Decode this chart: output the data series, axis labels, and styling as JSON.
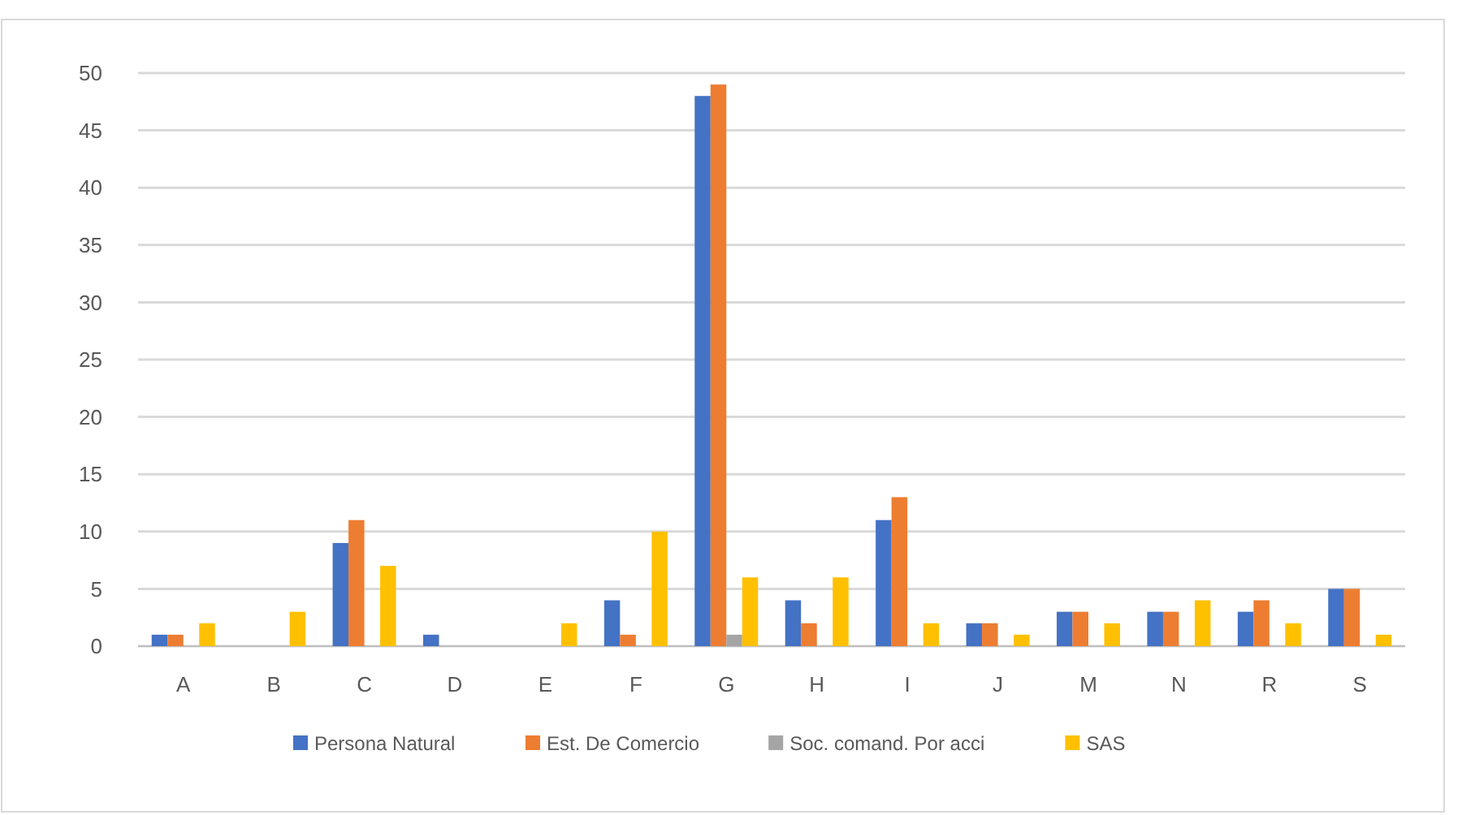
{
  "chart_data": {
    "type": "bar",
    "categories": [
      "A",
      "B",
      "C",
      "D",
      "E",
      "F",
      "G",
      "H",
      "I",
      "J",
      "M",
      "N",
      "R",
      "S"
    ],
    "series": [
      {
        "name": "Persona Natural",
        "color": "#4472c4",
        "values": [
          1,
          0,
          9,
          1,
          0,
          4,
          48,
          4,
          11,
          2,
          3,
          3,
          3,
          5
        ]
      },
      {
        "name": "Est. De Comercio",
        "color": "#ed7d31",
        "values": [
          1,
          0,
          11,
          0,
          0,
          1,
          49,
          2,
          13,
          2,
          3,
          3,
          4,
          5
        ]
      },
      {
        "name": "Soc. comand. Por acci",
        "color": "#a5a5a5",
        "values": [
          0,
          0,
          0,
          0,
          0,
          0,
          1,
          0,
          0,
          0,
          0,
          0,
          0,
          0
        ]
      },
      {
        "name": "SAS",
        "color": "#ffc000",
        "values": [
          2,
          3,
          7,
          0,
          2,
          10,
          6,
          6,
          2,
          1,
          2,
          4,
          2,
          1
        ]
      }
    ],
    "ylim": [
      0,
      50
    ],
    "yticks": [
      0,
      5,
      10,
      15,
      20,
      25,
      30,
      35,
      40,
      45,
      50
    ],
    "grid": "y",
    "legend": "bottom"
  }
}
